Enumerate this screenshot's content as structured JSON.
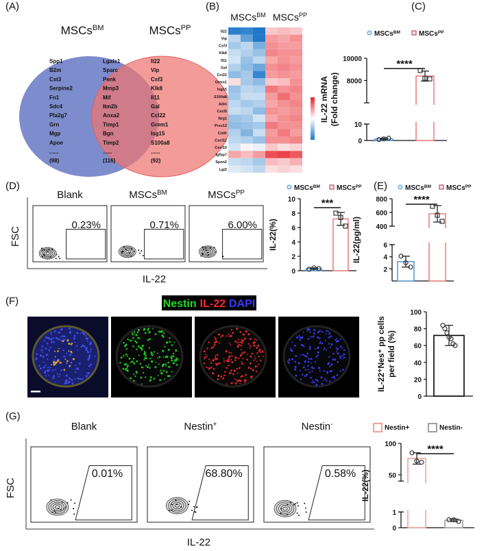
{
  "panel_labels": [
    "(A)",
    "(B)",
    "(C)",
    "(D)",
    "(E)",
    "(F)",
    "(G)"
  ],
  "venn": {
    "sets": [
      {
        "text": "MSCs",
        "sup": "BM"
      },
      {
        "text": "MSCs",
        "sup": "PP"
      }
    ],
    "left": [
      "Spp1",
      "B2m",
      "Cst3",
      "Serpine2",
      "Fn1",
      "Sdc4",
      "Pla2g7",
      "Grn",
      "Mgp",
      "Apoe",
      "......",
      "(98)"
    ],
    "both": [
      "Lgals1",
      "Sparc",
      "Penk",
      "Mmp3",
      "Mif",
      "Itm2b",
      "Anxa2",
      "Timp1",
      "Bgn",
      "Timp2",
      "......",
      "(116)"
    ],
    "right": [
      "Il22",
      "Vip",
      "Csf3",
      "Klk8",
      "Il11",
      "Gal",
      "Ccl22",
      "Grem1",
      "Isg15",
      "S100a8",
      "......",
      "(92)"
    ]
  },
  "image_panel": {
    "channels": [
      {
        "name": "Nestin",
        "color": "#22dd22"
      },
      {
        "name": "IL-22",
        "color": "#ff2a2a"
      },
      {
        "name": "DAPI",
        "color": "#3a3aff"
      }
    ]
  },
  "chart_data": [
    {
      "type": "heatmap",
      "column_groups": [
        {
          "text": "MSCs",
          "sup": "BM"
        },
        {
          "text": "MSCs",
          "sup": "PP"
        }
      ],
      "rows": [
        "Il22",
        "Vip",
        "Csf3",
        "Klk8",
        "Il11",
        "Gal",
        "Ccl22",
        "Grem1",
        "Isg15",
        "S100a8",
        "Adm",
        "Cxcl5",
        "Nrg1",
        "Prss12",
        "Cntfr",
        "Cxcl12",
        "Cxcl10",
        "Igfbp7",
        "Spon2",
        "Lgi2"
      ],
      "values": [
        [
          -1.9,
          -1.8,
          -2.0,
          0.5,
          0.6,
          0.5
        ],
        [
          -0.6,
          -1.4,
          -2.0,
          0.9,
          0.8,
          1.0
        ],
        [
          -0.8,
          -0.6,
          -1.2,
          1.0,
          0.9,
          0.9
        ],
        [
          -0.5,
          -0.7,
          -0.9,
          1.1,
          1.0,
          1.0
        ],
        [
          -0.4,
          -0.9,
          -0.6,
          0.8,
          1.0,
          0.9
        ],
        [
          -0.7,
          -1.0,
          -1.3,
          1.0,
          1.1,
          1.0
        ],
        [
          -1.0,
          -0.8,
          -1.8,
          0.9,
          1.0,
          0.9
        ],
        [
          0.3,
          -0.8,
          -1.0,
          0.5,
          0.6,
          1.0
        ],
        [
          -0.9,
          -0.6,
          -0.7,
          1.2,
          1.0,
          1.1
        ],
        [
          -0.8,
          -0.5,
          -0.5,
          0.9,
          1.3,
          1.0
        ],
        [
          -0.6,
          -0.8,
          -0.7,
          0.8,
          1.0,
          1.1
        ],
        [
          -0.5,
          -0.6,
          -1.0,
          1.0,
          0.9,
          1.0
        ],
        [
          -0.9,
          -0.8,
          -0.4,
          0.8,
          1.0,
          1.1
        ],
        [
          -1.0,
          -0.9,
          -0.8,
          1.2,
          1.0,
          1.0
        ],
        [
          -0.7,
          -1.1,
          -0.5,
          0.9,
          1.2,
          0.9
        ],
        [
          -0.6,
          -0.7,
          -0.9,
          1.0,
          1.0,
          1.1
        ],
        [
          -0.4,
          0.1,
          -0.2,
          0.5,
          0.3,
          0.4
        ],
        [
          0.8,
          0.6,
          0.9,
          1.6,
          1.7,
          1.5
        ],
        [
          -0.5,
          -0.6,
          -0.8,
          0.6,
          0.5,
          0.7
        ],
        [
          -0.3,
          -0.4,
          -0.6,
          0.3,
          0.4,
          0.3
        ]
      ],
      "zlim": [
        -2,
        2
      ]
    },
    {
      "type": "bar",
      "ylabel": [
        "IL-22 mRNA",
        "(Fold change)"
      ],
      "ylim": [
        0,
        10000
      ],
      "y_break": [
        10,
        6000
      ],
      "yticks": [
        0,
        10,
        8000,
        10000
      ],
      "significance": "****",
      "series": [
        {
          "name": "MSCs",
          "name_sup": "BM",
          "color": "#5b9bd5",
          "values": [
            1.0
          ],
          "errors": [
            0.4
          ],
          "points": [
            0.6,
            1.0,
            1.4
          ]
        },
        {
          "name": "MSCs",
          "name_sup": "PP",
          "color": "#f08080",
          "values": [
            8400
          ],
          "errors": [
            450
          ],
          "points": [
            8900,
            8200,
            8150
          ]
        }
      ]
    },
    {
      "type": "flow",
      "titles": [
        {
          "text": "Blank"
        },
        {
          "text": "MSCs",
          "sup": "BM"
        },
        {
          "text": "MSCs",
          "sup": "PP"
        }
      ],
      "values": [
        0.23,
        0.71,
        6.0
      ],
      "value_labels": [
        "0.23%",
        "0.71%",
        "6.00%"
      ],
      "xlabel": "IL-22",
      "ylabel": "FSC"
    },
    {
      "type": "bar",
      "ylabel": "IL-22(%)",
      "ylim": [
        0,
        10
      ],
      "yticks": [
        0,
        2,
        4,
        6,
        8,
        10
      ],
      "significance": "***",
      "series": [
        {
          "name": "MSCs",
          "name_sup": "BM",
          "color": "#5b9bd5",
          "values": [
            0.3
          ],
          "errors": [
            0.1
          ],
          "points": [
            0.2,
            0.4,
            0.3
          ]
        },
        {
          "name": "MSCs",
          "name_sup": "PP",
          "color": "#f08080",
          "values": [
            7.2
          ],
          "errors": [
            0.9
          ],
          "points": [
            8.0,
            7.4,
            6.2
          ]
        }
      ]
    },
    {
      "type": "bar",
      "ylabel": "IL-22(pg/ml)",
      "ylim": [
        0,
        800
      ],
      "y_break": [
        6,
        400
      ],
      "yticks": [
        2,
        4,
        6,
        400,
        600,
        800
      ],
      "significance": "****",
      "series": [
        {
          "name": "MSCs",
          "name_sup": "BM",
          "color": "#5b9bd5",
          "values": [
            3.2
          ],
          "errors": [
            0.9
          ],
          "points": [
            4.1,
            3.0,
            2.3
          ]
        },
        {
          "name": "MSCs",
          "name_sup": "PP",
          "color": "#f08080",
          "values": [
            580
          ],
          "errors": [
            120
          ],
          "points": [
            690,
            560,
            470
          ]
        }
      ]
    },
    {
      "type": "bar",
      "ylabel": [
        "IL-22⁺Nes⁺ pp cells",
        "per field (%)"
      ],
      "ylim": [
        0,
        100
      ],
      "yticks": [
        0,
        20,
        40,
        60,
        80,
        100
      ],
      "series": [
        {
          "color": "#000000",
          "values": [
            72
          ],
          "errors": [
            12
          ],
          "points": [
            84,
            80,
            75,
            70,
            68,
            62,
            60
          ]
        }
      ]
    },
    {
      "type": "flow",
      "titles": [
        {
          "text": "Blank"
        },
        {
          "text": "Nestin",
          "sup": "+"
        },
        {
          "text": "Nestin",
          "sup": "-"
        }
      ],
      "values": [
        0.01,
        68.8,
        0.58
      ],
      "value_labels": [
        "0.01%",
        "68.80%",
        "0.58%"
      ],
      "xlabel": "IL-22",
      "ylabel": "FSC"
    },
    {
      "type": "bar",
      "ylabel": "IL-22(%)",
      "ylim": [
        0,
        100
      ],
      "y_break": [
        1,
        40
      ],
      "yticks": [
        0,
        1,
        50,
        100
      ],
      "significance": "****",
      "series": [
        {
          "name": "Nestin+",
          "color": "#f4a09a",
          "values": [
            76
          ],
          "errors": [
            9
          ],
          "points": [
            85,
            72,
            70
          ]
        },
        {
          "name": "Nestin-",
          "color": "#a0a0a0",
          "values": [
            0.47
          ],
          "errors": [
            0.08
          ],
          "points": [
            0.5,
            0.5,
            0.4
          ]
        }
      ]
    }
  ]
}
